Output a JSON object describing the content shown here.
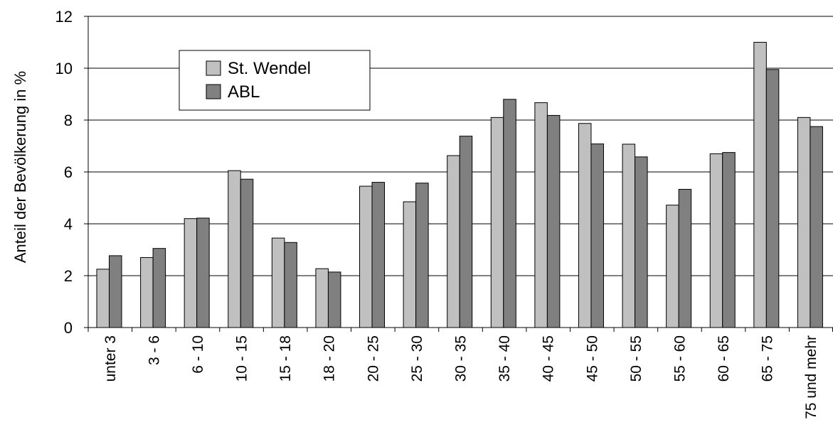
{
  "chart_data": {
    "type": "bar",
    "title": "",
    "xlabel": "",
    "ylabel": "Anteil der Bevölkerung in %",
    "ylim": [
      0,
      12
    ],
    "yticks": [
      0,
      2,
      4,
      6,
      8,
      10,
      12
    ],
    "grid": true,
    "legend_position": "top-left",
    "categories": [
      "unter 3",
      "3 - 6",
      "6 - 10",
      "10 - 15",
      "15 - 18",
      "18 - 20",
      "20 - 25",
      "25 - 30",
      "30 - 35",
      "35 - 40",
      "40 - 45",
      "45 - 50",
      "50 - 55",
      "55 - 60",
      "60 - 65",
      "65 - 75",
      "75 und mehr"
    ],
    "series": [
      {
        "name": "St. Wendel",
        "color": "#c0c0c0",
        "values": [
          2.25,
          2.7,
          4.2,
          6.05,
          3.45,
          2.27,
          5.45,
          4.85,
          6.63,
          8.1,
          8.67,
          7.87,
          7.07,
          4.72,
          6.7,
          11.0,
          8.1
        ]
      },
      {
        "name": "ABL",
        "color": "#808080",
        "values": [
          2.77,
          3.05,
          4.22,
          5.72,
          3.28,
          2.14,
          5.6,
          5.57,
          7.38,
          8.8,
          8.18,
          7.08,
          6.58,
          5.33,
          6.75,
          9.95,
          7.75
        ]
      }
    ]
  }
}
